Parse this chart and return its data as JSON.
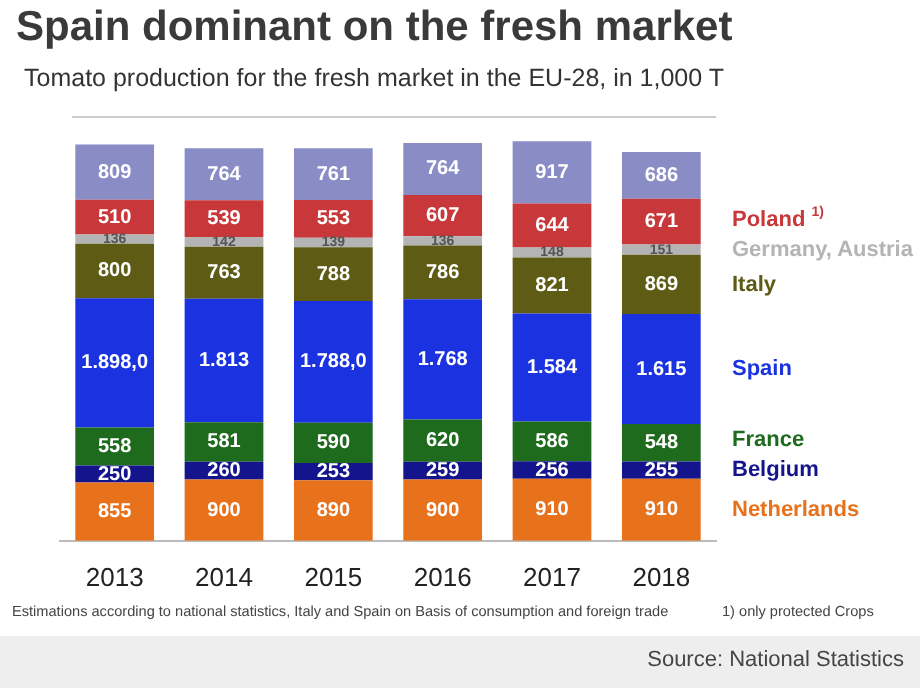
{
  "chart_data": {
    "type": "bar",
    "stacked": true,
    "title": "Spain dominant on the fresh market",
    "subtitle": "Tomato production for the fresh market in the EU-28, in 1,000 T",
    "categories": [
      "2013",
      "2014",
      "2015",
      "2016",
      "2017",
      "2018"
    ],
    "legend": "right",
    "series": [
      {
        "name": "Netherlands",
        "color": "#e8721c",
        "values": [
          855,
          900,
          890,
          900,
          910,
          910
        ],
        "value_labels": [
          "855",
          "900",
          "890",
          "900",
          "910",
          "910"
        ]
      },
      {
        "name": "Belgium",
        "color": "#14148c",
        "values": [
          250,
          260,
          253,
          259,
          256,
          255
        ],
        "value_labels": [
          "250",
          "260",
          "253",
          "259",
          "256",
          "255"
        ]
      },
      {
        "name": "France",
        "color": "#1e6b1e",
        "values": [
          558,
          581,
          590,
          620,
          586,
          548
        ],
        "value_labels": [
          "558",
          "581",
          "590",
          "620",
          "586",
          "548"
        ]
      },
      {
        "name": "Spain",
        "color": "#1a32e0",
        "values": [
          1898.0,
          1813,
          1788.0,
          1768,
          1584,
          1615
        ],
        "value_labels": [
          "1.898,0",
          "1.813",
          "1.788,0",
          "1.768",
          "1.584",
          "1.615"
        ]
      },
      {
        "name": "Italy",
        "color": "#5e5c14",
        "values": [
          800,
          763,
          788,
          786,
          821,
          869
        ],
        "value_labels": [
          "800",
          "763",
          "788",
          "786",
          "821",
          "869"
        ]
      },
      {
        "name": "Germany, Austria",
        "color": "#b4b4b4",
        "values": [
          136,
          142,
          139,
          136,
          148,
          151
        ],
        "value_labels": [
          "136",
          "142",
          "139",
          "136",
          "148",
          "151"
        ]
      },
      {
        "name": "Poland $^{1)}$",
        "color": "#c8383a",
        "values": [
          510,
          539,
          553,
          607,
          644,
          671
        ],
        "value_labels": [
          "510",
          "539",
          "553",
          "607",
          "644",
          "671"
        ]
      },
      {
        "color": "#8a8cc6",
        "values": [
          809,
          764,
          761,
          764,
          917,
          686
        ],
        "value_labels": [
          "809",
          "764",
          "761",
          "764",
          "917",
          "686"
        ]
      }
    ],
    "annotations": [
      "Estimations according to national statistics, Italy and Spain on Basis of consumption and foreign trade",
      "1) only protected Crops",
      "Source: National Statistics"
    ]
  }
}
